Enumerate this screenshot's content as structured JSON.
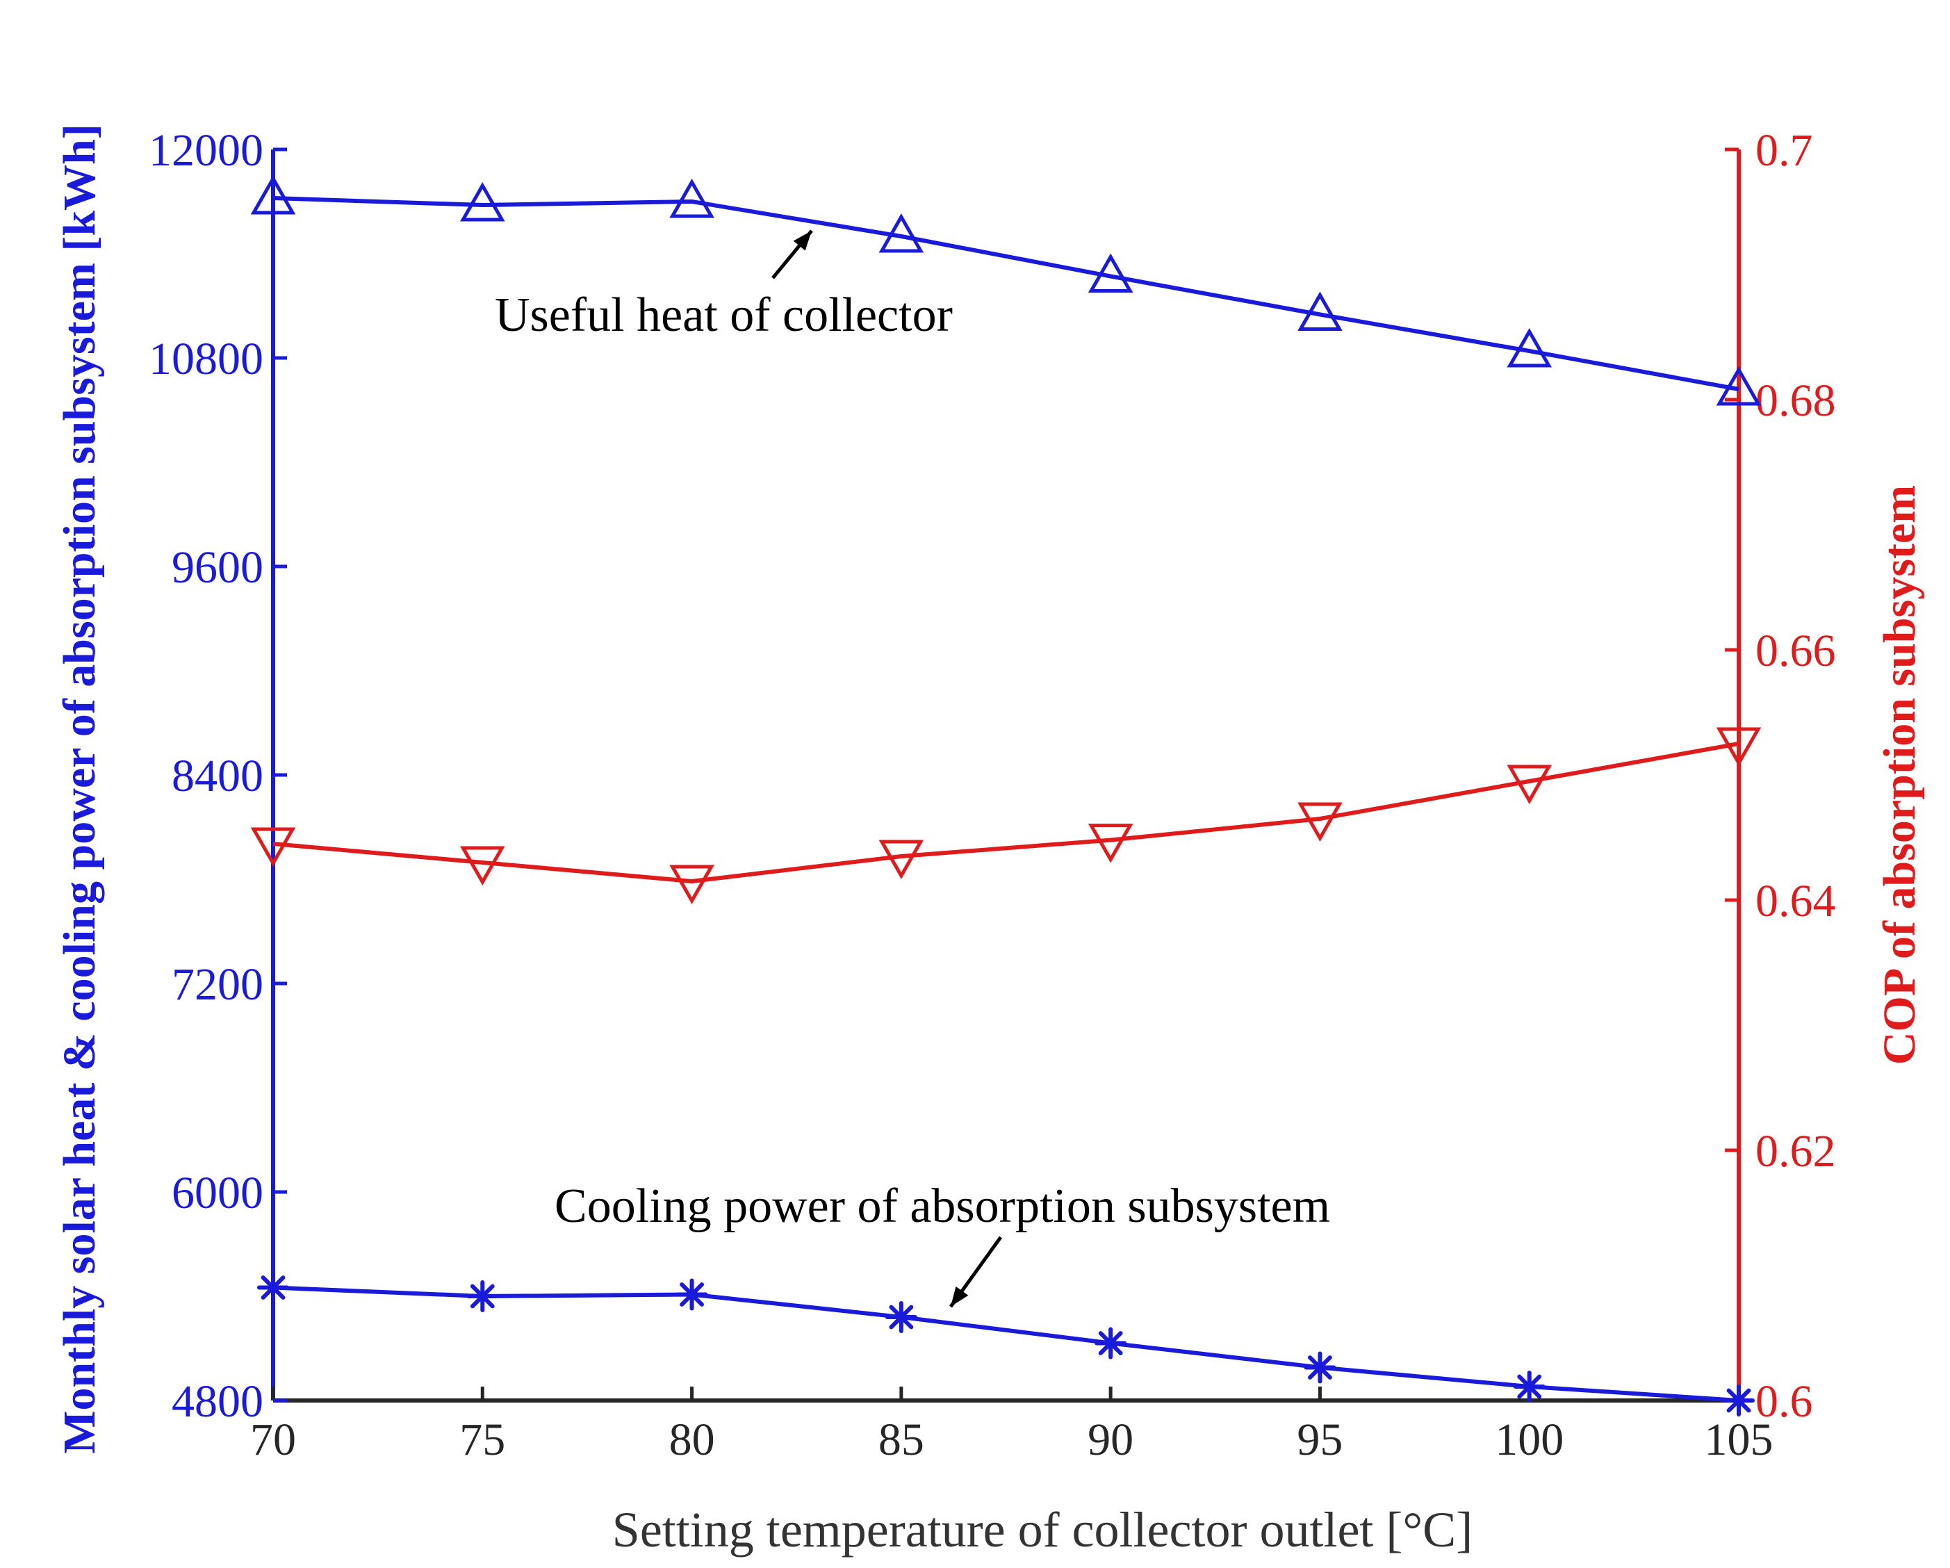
{
  "chart_data": {
    "type": "line",
    "xlabel": "Setting temperature of collector outlet [°C]",
    "ylabel_left": "Monthly solar heat & cooling power of absorption subsystem [kWh]",
    "ylabel_right": "COP of absorption subsystem",
    "x": [
      70,
      75,
      80,
      85,
      90,
      95,
      100,
      105
    ],
    "xlim": [
      70,
      105
    ],
    "xticks": [
      "70",
      "75",
      "80",
      "85",
      "90",
      "95",
      "100",
      "105"
    ],
    "ylim_left": [
      4800,
      12000
    ],
    "yticks_left": [
      "4800",
      "6000",
      "7200",
      "8400",
      "9600",
      "10800",
      "12000"
    ],
    "ylim_right": [
      0.6,
      0.7
    ],
    "yticks_right": [
      "0.6",
      "0.62",
      "0.64",
      "0.66",
      "0.68",
      "0.7"
    ],
    "grid": false,
    "series": [
      {
        "name": "Useful heat of collector",
        "axis": "left",
        "marker": "triangle-up",
        "color": "#1a1adb",
        "values": [
          11720,
          11680,
          11700,
          11500,
          11270,
          11050,
          10840,
          10620
        ]
      },
      {
        "name": "Cooling power of absorption subsystem",
        "axis": "left",
        "marker": "asterisk",
        "color": "#1a1adb",
        "values": [
          5450,
          5400,
          5410,
          5280,
          5130,
          4990,
          4880,
          4800
        ]
      },
      {
        "name": "COP",
        "axis": "right",
        "marker": "triangle-down",
        "color": "#e01b1b",
        "values": [
          0.6445,
          0.643,
          0.6415,
          0.6435,
          0.6448,
          0.6465,
          0.6495,
          0.6525
        ]
      }
    ],
    "annotations": [
      {
        "text": "Useful heat of collector"
      },
      {
        "text": "Cooling power of absorption subsystem"
      }
    ]
  }
}
